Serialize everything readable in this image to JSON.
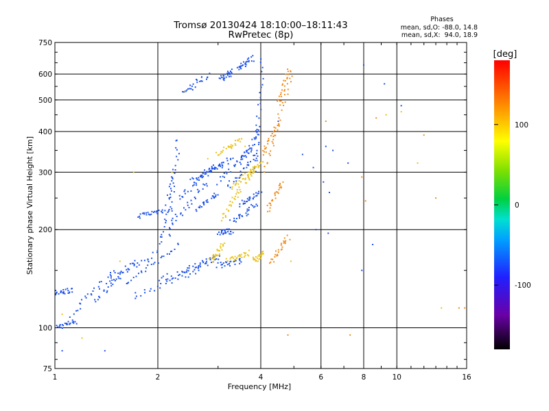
{
  "chart_data": {
    "type": "scatter",
    "title": "Tromsø 20130424 18:10:00–18:11:43",
    "subtitle": "RwPretec (8p)",
    "xlabel": "Frequency [MHz]",
    "ylabel": "Stationary phase Virtual Height [km]",
    "x_scale": "log",
    "y_scale": "log",
    "xlim": [
      1,
      16
    ],
    "ylim": [
      75,
      750
    ],
    "x_ticks": [
      1,
      2,
      4,
      6,
      8,
      10,
      16
    ],
    "x_ticklabels": [
      "1",
      "2",
      "4",
      "6",
      "8",
      "10",
      "16"
    ],
    "y_ticks": [
      75,
      100,
      200,
      300,
      400,
      500,
      600,
      750
    ],
    "y_ticklabels": [
      "75",
      "100",
      "200",
      "300",
      "400",
      "500",
      "600",
      "750"
    ],
    "grid": true,
    "phase_box": {
      "title": "Phases",
      "line1": "mean, sd,O: -88.0, 14.8",
      "line2": "mean, sd,X:  94.0, 18.9"
    },
    "colorbar": {
      "label": "[deg]",
      "range": [
        -180,
        180
      ],
      "ticks": [
        -100,
        0,
        100
      ],
      "ticklabels": [
        "-100",
        "0",
        "100"
      ]
    },
    "series": [
      {
        "mode": "O",
        "phase_deg": -88,
        "color": "#1a4fe8",
        "segments": [
          {
            "x": [
              1.0,
              1.15
            ],
            "y": [
              100,
              105
            ]
          },
          {
            "x": [
              1.0,
              1.12
            ],
            "y": [
              128,
              130
            ]
          },
          {
            "x": [
              1.12,
              1.5
            ],
            "y": [
              110,
              150
            ]
          },
          {
            "x": [
              1.3,
              1.7
            ],
            "y": [
              120,
              160
            ]
          },
          {
            "x": [
              1.45,
              2.0
            ],
            "y": [
              140,
              170
            ]
          },
          {
            "x": [
              1.6,
              2.3
            ],
            "y": [
              135,
              180
            ]
          },
          {
            "x": [
              1.7,
              2.6
            ],
            "y": [
              125,
              150
            ]
          },
          {
            "x": [
              2.0,
              2.9
            ],
            "y": [
              140,
              160
            ]
          },
          {
            "x": [
              2.4,
              3.0
            ],
            "y": [
              150,
              165
            ]
          },
          {
            "x": [
              1.75,
              2.1
            ],
            "y": [
              220,
              230
            ]
          },
          {
            "x": [
              2.05,
              2.2
            ],
            "y": [
              180,
              300
            ]
          },
          {
            "x": [
              2.15,
              2.3
            ],
            "y": [
              190,
              380
            ]
          },
          {
            "x": [
              2.2,
              2.8
            ],
            "y": [
              210,
              280
            ]
          },
          {
            "x": [
              2.3,
              2.9
            ],
            "y": [
              250,
              310
            ]
          },
          {
            "x": [
              2.5,
              3.1
            ],
            "y": [
              280,
              320
            ]
          },
          {
            "x": [
              2.7,
              3.3
            ],
            "y": [
              295,
              330
            ]
          },
          {
            "x": [
              2.6,
              3.0
            ],
            "y": [
              230,
              260
            ]
          },
          {
            "x": [
              2.35,
              2.8
            ],
            "y": [
              520,
              600
            ]
          },
          {
            "x": [
              3.05,
              3.3
            ],
            "y": [
              580,
              610
            ]
          },
          {
            "x": [
              3.4,
              3.8
            ],
            "y": [
              620,
              670
            ]
          },
          {
            "x": [
              3.0,
              3.8
            ],
            "y": [
              280,
              360
            ]
          },
          {
            "x": [
              3.2,
              3.9
            ],
            "y": [
              270,
              340
            ]
          },
          {
            "x": [
              3.5,
              3.95
            ],
            "y": [
              320,
              400
            ]
          },
          {
            "x": [
              3.85,
              4.05
            ],
            "y": [
              300,
              660
            ]
          },
          {
            "x": [
              3.0,
              3.3
            ],
            "y": [
              196,
              198
            ]
          },
          {
            "x": [
              3.3,
              3.9
            ],
            "y": [
              210,
              240
            ]
          },
          {
            "x": [
              3.0,
              3.5
            ],
            "y": [
              155,
              160
            ]
          },
          {
            "x": [
              3.5,
              4.0
            ],
            "y": [
              240,
              260
            ]
          }
        ],
        "scattered": [
          [
            1.05,
            85
          ],
          [
            1.4,
            85
          ],
          [
            5.8,
            200
          ],
          [
            6.3,
            195
          ],
          [
            8.0,
            640
          ],
          [
            4.5,
            430
          ],
          [
            5.3,
            340
          ],
          [
            5.7,
            310
          ],
          [
            6.1,
            280
          ],
          [
            6.2,
            360
          ],
          [
            6.35,
            260
          ],
          [
            6.5,
            350
          ],
          [
            7.2,
            320
          ],
          [
            7.9,
            150
          ],
          [
            8.5,
            180
          ],
          [
            9.2,
            560
          ],
          [
            10.3,
            480
          ]
        ]
      },
      {
        "mode": "X",
        "phase_deg": 94,
        "color": "#e8c214",
        "segments": [
          {
            "x": [
              3.0,
              3.5
            ],
            "y": [
              340,
              380
            ]
          },
          {
            "x": [
              3.1,
              3.5
            ],
            "y": [
              215,
              270
            ]
          },
          {
            "x": [
              3.3,
              3.85
            ],
            "y": [
              270,
              310
            ]
          },
          {
            "x": [
              3.6,
              4.0
            ],
            "y": [
              280,
              320
            ]
          },
          {
            "x": [
              2.85,
              3.1
            ],
            "y": [
              160,
              180
            ]
          },
          {
            "x": [
              3.2,
              3.7
            ],
            "y": [
              160,
              170
            ]
          },
          {
            "x": [
              3.8,
              4.1
            ],
            "y": [
              160,
              170
            ]
          }
        ],
        "scattered": [
          [
            1.05,
            110
          ],
          [
            1.2,
            93
          ],
          [
            1.55,
            160
          ],
          [
            1.7,
            300
          ],
          [
            2.2,
            300
          ],
          [
            2.8,
            330
          ],
          [
            2.4,
            530
          ],
          [
            3.6,
            360
          ],
          [
            4.9,
            160
          ],
          [
            9.3,
            450
          ],
          [
            10.3,
            460
          ],
          [
            11.5,
            320
          ],
          [
            13.5,
            115
          ]
        ]
      },
      {
        "mode": "X",
        "phase_deg": 120,
        "color": "#f08a18",
        "segments": [
          {
            "x": [
              4.1,
              4.9
            ],
            "y": [
              300,
              590
            ]
          },
          {
            "x": [
              4.05,
              4.5
            ],
            "y": [
              340,
              420
            ]
          },
          {
            "x": [
              4.2,
              4.6
            ],
            "y": [
              230,
              280
            ]
          },
          {
            "x": [
              4.3,
              4.8
            ],
            "y": [
              160,
              190
            ]
          },
          {
            "x": [
              4.5,
              4.85
            ],
            "y": [
              490,
              620
            ]
          }
        ],
        "scattered": [
          [
            4.8,
            95
          ],
          [
            6.2,
            430
          ],
          [
            7.3,
            95
          ],
          [
            7.9,
            290
          ],
          [
            8.1,
            245
          ],
          [
            8.7,
            440
          ],
          [
            12.0,
            390
          ],
          [
            13.0,
            250
          ],
          [
            15.2,
            115
          ],
          [
            15.8,
            115
          ]
        ]
      }
    ]
  }
}
